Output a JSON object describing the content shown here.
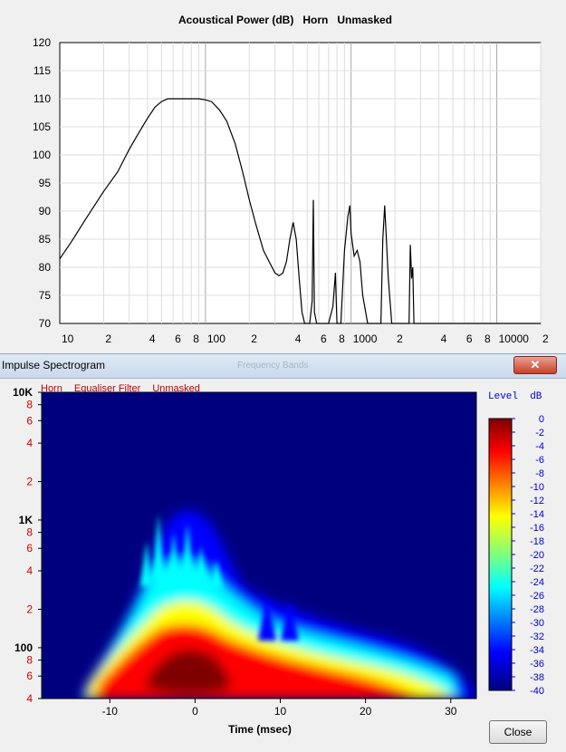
{
  "top_chart": {
    "title": "Acoustical Power (dB)   Horn   Unmasked",
    "y_ticks": [
      "120",
      "115",
      "110",
      "105",
      "100",
      "95",
      "90",
      "85",
      "80",
      "75",
      "70"
    ],
    "x_ticks": [
      "10",
      "2",
      "4",
      "6",
      "8",
      "100",
      "2",
      "4",
      "6",
      "8",
      "1000",
      "2",
      "4",
      "6",
      "8",
      "10000",
      "2"
    ]
  },
  "spectrogram_window": {
    "title": "Impulse Spectrogram",
    "ghost_title": "Frequency Bands",
    "close_icon": "close-x-icon",
    "header_items": [
      "Horn",
      "Equaliser Filter",
      "Unmasked"
    ],
    "close_label": "Close"
  },
  "chart_data": [
    {
      "type": "line",
      "title": "Acoustical Power (dB)   Horn   Unmasked",
      "x_scale": "log",
      "xlim": [
        10,
        20000
      ],
      "ylim": [
        70,
        120
      ],
      "grid": true,
      "series": [
        {
          "x": [
            10,
            12,
            15,
            20,
            25,
            30,
            35,
            40,
            45,
            50,
            55,
            60,
            70,
            80,
            90,
            100,
            110,
            125,
            140,
            160,
            180,
            200,
            220,
            250,
            280,
            300,
            320,
            340,
            360,
            380,
            400,
            420,
            440,
            460,
            480,
            520,
            540,
            550,
            560,
            580,
            600,
            620,
            700,
            750,
            780,
            790,
            800,
            820,
            850,
            900,
            950,
            980,
            1000,
            1050,
            1100,
            1150,
            1200,
            1300,
            1400,
            1500,
            1550,
            1600,
            1650,
            1700,
            1800,
            1900,
            2000,
            2100,
            2200,
            2300,
            2400,
            2500,
            2550,
            2600,
            2650,
            2700,
            2800,
            3000,
            3500,
            4000,
            4500,
            5000,
            5500,
            5600,
            5700,
            5800,
            6000,
            7000,
            8000,
            10000,
            15000,
            20000
          ],
          "y": [
            81.5,
            84.5,
            88.5,
            93.5,
            97,
            101,
            104,
            106.5,
            108.5,
            109.5,
            110,
            110,
            110,
            110,
            110,
            109.8,
            109.5,
            108,
            106,
            102,
            97,
            92,
            88,
            83,
            80.5,
            79,
            78.5,
            79,
            81,
            85,
            88,
            85,
            78,
            72,
            70,
            70,
            74,
            92,
            72,
            70,
            70,
            70,
            70,
            73,
            79,
            74,
            70,
            70,
            70,
            83,
            89,
            91,
            86,
            82,
            83,
            81,
            75,
            70,
            70,
            70,
            70,
            70,
            85,
            91,
            78,
            70,
            70,
            70,
            70,
            70,
            70,
            70,
            84,
            78,
            80,
            70,
            70,
            70,
            70,
            70,
            70,
            70,
            70,
            70,
            70,
            70,
            70,
            70,
            70,
            70,
            70,
            70
          ]
        }
      ]
    },
    {
      "type": "heatmap",
      "title": "Impulse Spectrogram",
      "header": [
        "Horn",
        "Equaliser Filter",
        "Unmasked"
      ],
      "xlabel": "Time (msec)",
      "x_ticks": [
        -10,
        0,
        10,
        20,
        30
      ],
      "xlim": [
        -18,
        33
      ],
      "y_scale": "log",
      "ylim": [
        40,
        10000
      ],
      "y_tick_labels": [
        "10K",
        "8",
        "6",
        "4",
        "2",
        "1K",
        "8",
        "6",
        "4",
        "2",
        "100",
        "8",
        "6",
        "4"
      ],
      "colorbar": {
        "title": "Level  dB",
        "range": [
          -40,
          0
        ],
        "ticks": [
          "0",
          "-2",
          "-4",
          "-6",
          "-8",
          "-10",
          "-12",
          "-14",
          "-16",
          "-18",
          "-20",
          "-22",
          "-24",
          "-26",
          "-28",
          "-30",
          "-32",
          "-34",
          "-36",
          "-38",
          "-40"
        ]
      },
      "peak_region": {
        "time_ms": -1,
        "freq_hz": 75,
        "level_db": 0
      },
      "colors": {
        "background": "#00007f",
        "peak": "#7f0000",
        "hot": "#ff0000",
        "warm": "#ffff00",
        "cool": "#00ffff",
        "cold": "#0000ff"
      }
    }
  ]
}
